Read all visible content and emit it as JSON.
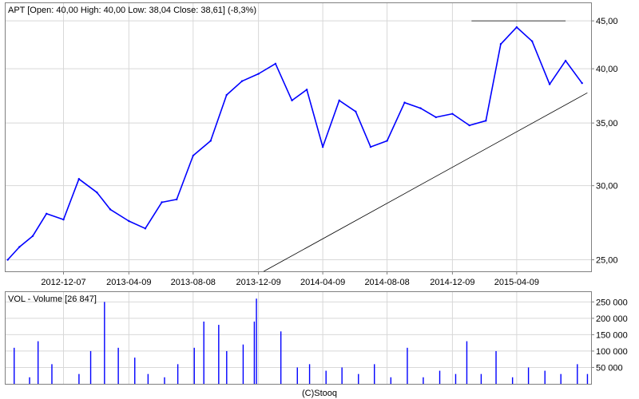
{
  "chart_data": [
    {
      "type": "line",
      "panel": "price",
      "title": "APT [Open: 40,00  High: 40,00  Low: 38,04  Close: 38,61] (-8,3%)",
      "scale": "log",
      "ylim": [
        24.3,
        47.0
      ],
      "y_ticks": [
        25,
        30,
        35,
        40,
        45
      ],
      "y_tick_labels": [
        "25,00",
        "30,00",
        "35,00",
        "40,00",
        "45,00"
      ],
      "x_tick_labels": [
        "2012-12-07",
        "2013-04-09",
        "2013-08-08",
        "2013-12-09",
        "2014-04-09",
        "2014-08-08",
        "2014-12-09",
        "2015-04-09"
      ],
      "grid": true,
      "legend": "none",
      "colors": {
        "price": "#0000ff",
        "grid": "#d8d8d8",
        "trendline": "#000000"
      },
      "series": [
        {
          "x": [
            "2012-08-24",
            "2012-09-15",
            "2012-10-10",
            "2012-11-05",
            "2012-12-07",
            "2013-01-05",
            "2013-02-08",
            "2013-03-05",
            "2013-04-09",
            "2013-05-10",
            "2013-06-10",
            "2013-07-08",
            "2013-08-08",
            "2013-09-10",
            "2013-10-10",
            "2013-11-08",
            "2013-12-09",
            "2014-01-10",
            "2014-02-10",
            "2014-03-10",
            "2014-04-09",
            "2014-05-10",
            "2014-06-10",
            "2014-07-08",
            "2014-08-08",
            "2014-09-10",
            "2014-10-10",
            "2014-11-08",
            "2014-12-09",
            "2015-01-10",
            "2015-02-10",
            "2015-03-10",
            "2015-04-09",
            "2015-05-08",
            "2015-06-10",
            "2015-07-10",
            "2015-08-10"
          ],
          "values": [
            25.0,
            25.8,
            26.5,
            28.0,
            27.6,
            30.5,
            29.5,
            28.3,
            27.5,
            27.0,
            28.8,
            29.0,
            32.3,
            33.5,
            37.5,
            38.8,
            39.5,
            40.5,
            37.0,
            38.0,
            33.0,
            37.0,
            36.0,
            33.0,
            33.5,
            36.8,
            36.3,
            35.5,
            35.8,
            34.8,
            35.2,
            42.5,
            44.3,
            42.8,
            38.5,
            40.8,
            38.61
          ]
        }
      ],
      "annotations": [
        {
          "type": "horizontal_line",
          "value": 45.0,
          "from": "2015-01-14",
          "to": "2015-07-10"
        },
        {
          "type": "trendline",
          "from": {
            "x": "2013-12-19",
            "y": 24.3
          },
          "to": {
            "x": "2015-08-20",
            "y": 37.7
          }
        }
      ]
    },
    {
      "type": "bar",
      "panel": "volume",
      "title": "VOL - Volume [26 847]",
      "ylim": [
        0,
        280000
      ],
      "y_ticks": [
        50000,
        100000,
        150000,
        200000,
        250000
      ],
      "y_tick_labels": [
        "50 000",
        "100 000",
        "150 000",
        "200 000",
        "250 000"
      ],
      "grid": true,
      "colors": {
        "bars": "#0000ff"
      },
      "series": [
        {
          "x": [
            "2012-09-05",
            "2012-10-04",
            "2012-10-20",
            "2012-11-15",
            "2013-01-05",
            "2013-01-27",
            "2013-02-22",
            "2013-03-20",
            "2013-04-20",
            "2013-05-15",
            "2013-06-15",
            "2013-07-10",
            "2013-08-10",
            "2013-08-28",
            "2013-09-25",
            "2013-10-10",
            "2013-11-10",
            "2013-12-01",
            "2013-12-05",
            "2014-01-20",
            "2014-02-20",
            "2014-03-15",
            "2014-04-15",
            "2014-05-15",
            "2014-06-15",
            "2014-07-15",
            "2014-08-15",
            "2014-09-15",
            "2014-10-15",
            "2014-11-15",
            "2014-12-15",
            "2015-01-05",
            "2015-02-01",
            "2015-03-01",
            "2015-04-01",
            "2015-05-01",
            "2015-06-01",
            "2015-07-01",
            "2015-08-01",
            "2015-08-20"
          ],
          "values": [
            110000,
            20000,
            130000,
            60000,
            30000,
            100000,
            250000,
            110000,
            80000,
            30000,
            20000,
            60000,
            110000,
            190000,
            180000,
            100000,
            120000,
            190000,
            260000,
            160000,
            50000,
            60000,
            40000,
            50000,
            30000,
            60000,
            20000,
            110000,
            20000,
            40000,
            30000,
            130000,
            30000,
            100000,
            20000,
            50000,
            40000,
            30000,
            60000,
            30000
          ]
        }
      ]
    }
  ],
  "footer": "(C)Stooq"
}
